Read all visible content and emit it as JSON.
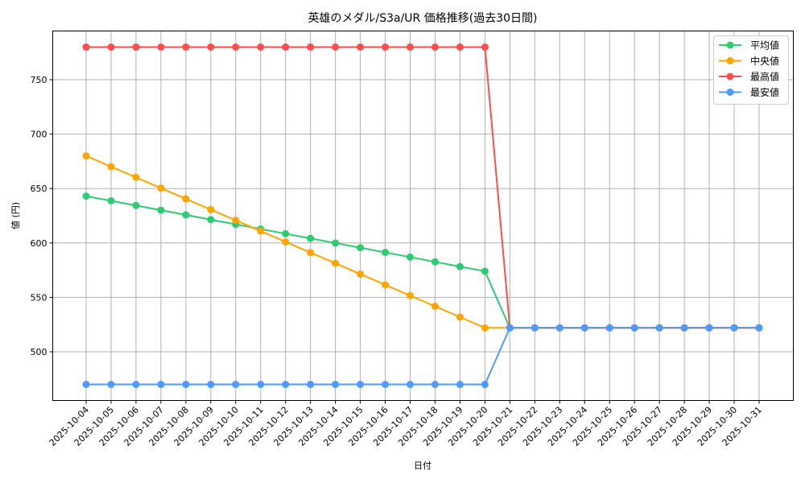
{
  "chart_data": {
    "type": "line",
    "title": "英雄のメダル/S3a/UR 価格推移(過去30日間)",
    "xlabel": "日付",
    "ylabel": "値 (円)",
    "ylim": [
      455,
      795
    ],
    "yticks": [
      500,
      550,
      600,
      650,
      700,
      750
    ],
    "grid": true,
    "legend_position": "upper right",
    "x": [
      "2025-10-04",
      "2025-10-05",
      "2025-10-06",
      "2025-10-07",
      "2025-10-08",
      "2025-10-09",
      "2025-10-10",
      "2025-10-11",
      "2025-10-12",
      "2025-10-13",
      "2025-10-14",
      "2025-10-15",
      "2025-10-16",
      "2025-10-17",
      "2025-10-18",
      "2025-10-19",
      "2025-10-20",
      "2025-10-21",
      "2025-10-22",
      "2025-10-23",
      "2025-10-24",
      "2025-10-25",
      "2025-10-26",
      "2025-10-27",
      "2025-10-28",
      "2025-10-29",
      "2025-10-30",
      "2025-10-31"
    ],
    "series": [
      {
        "name": "平均値",
        "color": "#2ecc71",
        "values": [
          643,
          638.7,
          634.4,
          630.1,
          625.8,
          621.4,
          617.1,
          612.8,
          608.5,
          604.2,
          599.9,
          595.6,
          591.3,
          587,
          582.6,
          578.3,
          574,
          522,
          522,
          522,
          522,
          522,
          522,
          522,
          522,
          522,
          522,
          522
        ]
      },
      {
        "name": "中央値",
        "color": "#ffa500",
        "values": [
          680,
          670.1,
          660.3,
          650.4,
          640.5,
          630.6,
          620.8,
          610.9,
          601,
          591.1,
          581.3,
          571.4,
          561.5,
          551.6,
          541.8,
          531.9,
          522,
          522,
          522,
          522,
          522,
          522,
          522,
          522,
          522,
          522,
          522,
          522
        ]
      },
      {
        "name": "最高値",
        "color": "#ff4d4d",
        "values": [
          780,
          780,
          780,
          780,
          780,
          780,
          780,
          780,
          780,
          780,
          780,
          780,
          780,
          780,
          780,
          780,
          780,
          522,
          522,
          522,
          522,
          522,
          522,
          522,
          522,
          522,
          522,
          522
        ]
      },
      {
        "name": "最安値",
        "color": "#4d9bff",
        "values": [
          470,
          470,
          470,
          470,
          470,
          470,
          470,
          470,
          470,
          470,
          470,
          470,
          470,
          470,
          470,
          470,
          470,
          522,
          522,
          522,
          522,
          522,
          522,
          522,
          522,
          522,
          522,
          522
        ]
      }
    ]
  }
}
